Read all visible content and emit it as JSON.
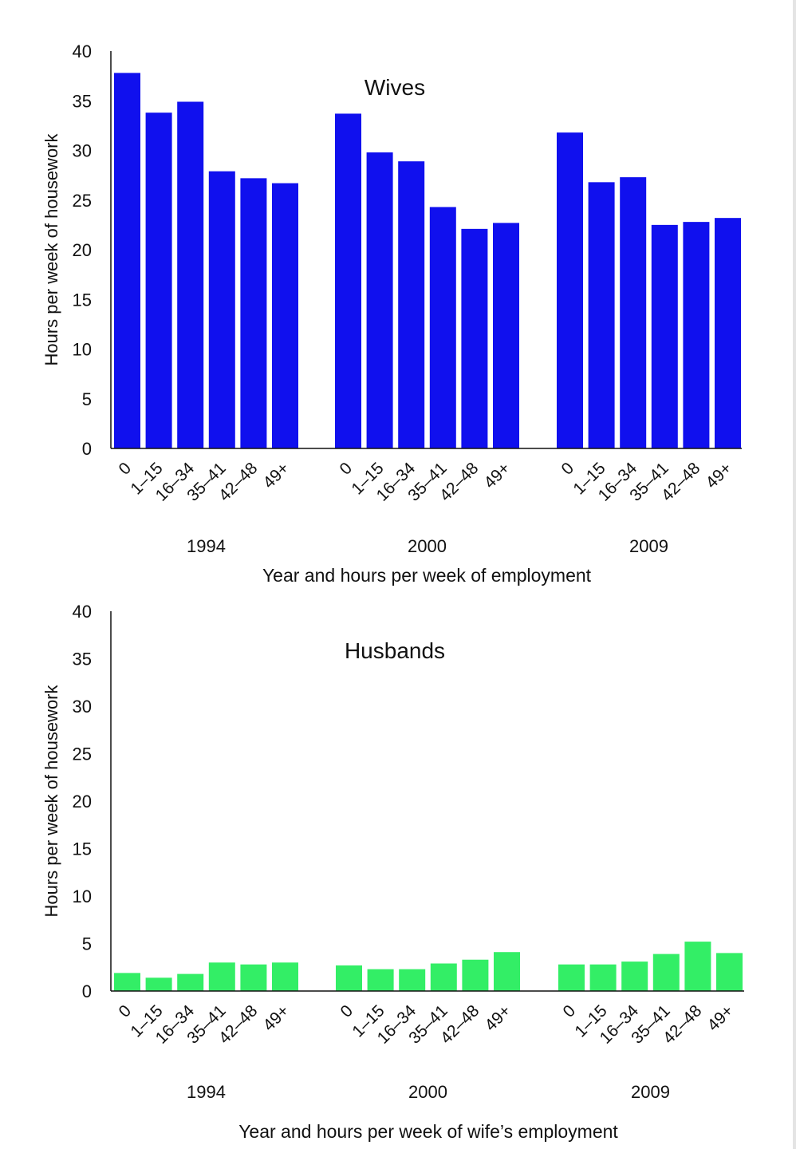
{
  "chart_data": [
    {
      "type": "bar",
      "title": "Wives",
      "xlabel": "Year and hours per week of employment",
      "ylabel": "Hours per week of housework",
      "ylim": [
        0,
        40
      ],
      "yticks": [
        0,
        5,
        10,
        15,
        20,
        25,
        30,
        35,
        40
      ],
      "groups": [
        "1994",
        "2000",
        "2009"
      ],
      "categories": [
        "0",
        "1–15",
        "16–34",
        "35–41",
        "42–48",
        "49+"
      ],
      "bar_color": "#1010ee",
      "series": [
        {
          "values": [
            37.8,
            33.8,
            34.9,
            27.9,
            27.2,
            26.7
          ]
        },
        {
          "values": [
            33.7,
            29.8,
            28.9,
            24.3,
            22.1,
            22.7
          ]
        },
        {
          "values": [
            31.8,
            26.8,
            27.3,
            22.5,
            22.8,
            23.2
          ]
        }
      ]
    },
    {
      "type": "bar",
      "title": "Husbands",
      "xlabel": "Year and hours per week of wife’s employment",
      "ylabel": "Hours per week of housework",
      "ylim": [
        0,
        40
      ],
      "yticks": [
        0,
        5,
        10,
        15,
        20,
        25,
        30,
        35,
        40
      ],
      "groups": [
        "1994",
        "2000",
        "2009"
      ],
      "categories": [
        "0",
        "1–15",
        "16–34",
        "35–41",
        "42–48",
        "49+"
      ],
      "bar_color": "#33ee66",
      "series": [
        {
          "values": [
            1.9,
            1.4,
            1.8,
            3.0,
            2.8,
            3.0
          ]
        },
        {
          "values": [
            2.7,
            2.3,
            2.3,
            2.9,
            3.3,
            4.1
          ]
        },
        {
          "values": [
            2.8,
            2.8,
            3.1,
            3.9,
            5.2,
            4.0
          ]
        }
      ]
    }
  ]
}
